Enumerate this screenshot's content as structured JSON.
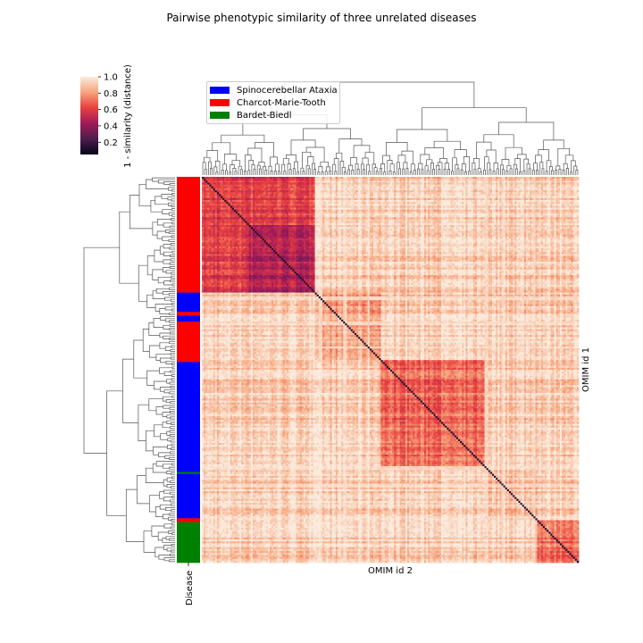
{
  "chart_data": {
    "type": "heatmap",
    "title": "Pairwise phenotypic similarity of three unrelated diseases",
    "xlabel": "OMIM id 2",
    "ylabel": "OMIM id 1",
    "row_color_label": "Disease",
    "colorbar": {
      "label": "1 - similarity (distance)",
      "ticks": [
        "0.2",
        "0.4",
        "0.6",
        "0.8",
        "1.0"
      ],
      "tick_values": [
        0.2,
        0.4,
        0.6,
        0.8,
        1.0
      ],
      "range": [
        0.05,
        1.0
      ]
    },
    "legend": [
      {
        "name": "Spinocerebellar Ataxia",
        "color": "#0000ff"
      },
      {
        "name": "Charcot-Marie-Tooth",
        "color": "#ff0000"
      },
      {
        "name": "Bardet-Biedl",
        "color": "#008000"
      }
    ],
    "legend_placement": "top-left",
    "n_diseases": 200,
    "row_disease_bands": [
      {
        "disease": "Charcot-Marie-Tooth",
        "count": 60
      },
      {
        "disease": "Spinocerebellar Ataxia",
        "count": 10
      },
      {
        "disease": "Charcot-Marie-Tooth",
        "count": 2
      },
      {
        "disease": "Spinocerebellar Ataxia",
        "count": 3
      },
      {
        "disease": "Charcot-Marie-Tooth",
        "count": 2
      },
      {
        "disease": "Charcot-Marie-Tooth",
        "count": 19
      },
      {
        "disease": "Spinocerebellar Ataxia",
        "count": 57
      },
      {
        "disease": "Bardet-Biedl",
        "count": 1
      },
      {
        "disease": "Spinocerebellar Ataxia",
        "count": 23
      },
      {
        "disease": "Charcot-Marie-Tooth",
        "count": 2
      },
      {
        "disease": "Bardet-Biedl",
        "count": 21
      }
    ],
    "similarity_blocks": [
      {
        "start": 0,
        "end": 60,
        "distance": 0.58
      },
      {
        "start": 25,
        "end": 60,
        "distance": 0.45
      },
      {
        "start": 60,
        "end": 95,
        "distance": 0.8
      },
      {
        "start": 95,
        "end": 152,
        "distance": 0.68
      },
      {
        "start": 152,
        "end": 178,
        "distance": 0.88
      },
      {
        "start": 178,
        "end": 200,
        "distance": 0.7
      }
    ],
    "diagonal_distance": 0.08,
    "background_distance": 0.92
  }
}
